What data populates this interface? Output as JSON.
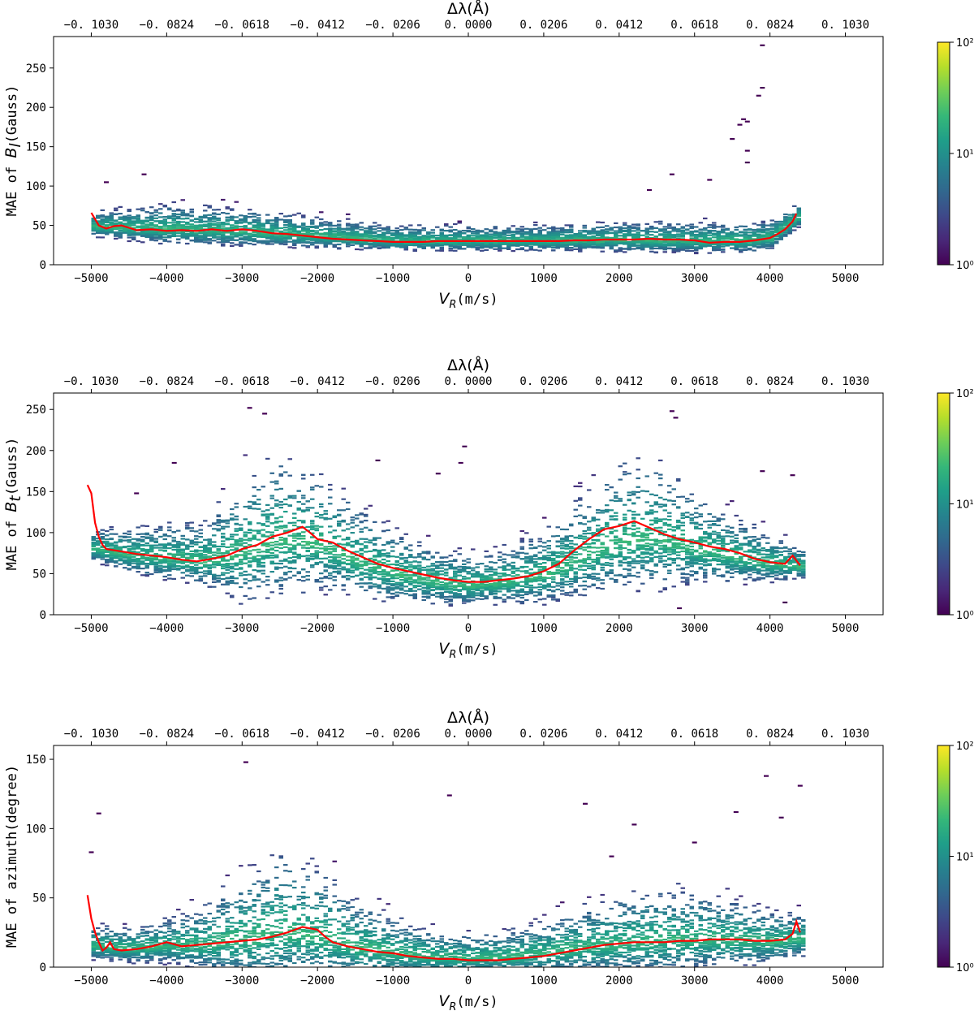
{
  "chart_data": [
    {
      "type": "heatmap",
      "id": "bl",
      "xlabel_italic": "V",
      "xlabel_sub": "R",
      "xlabel_unit": "(m/s)",
      "ylabel_prefix": "MAE  of ",
      "ylabel_italic": "B",
      "ylabel_sub": "l",
      "ylabel_unit": "(Gauss)",
      "top_xlabel": "Δλ(Å)",
      "xlim": [
        -5500,
        5500
      ],
      "ylim": [
        0,
        290
      ],
      "xticks": [
        -5000,
        -4000,
        -3000,
        -2000,
        -1000,
        0,
        1000,
        2000,
        3000,
        4000,
        5000
      ],
      "xtick_labels": [
        "−5000",
        "−4000",
        "−3000",
        "−2000",
        "−1000",
        "0",
        "1000",
        "2000",
        "3000",
        "4000",
        "5000"
      ],
      "yticks": [
        0,
        50,
        100,
        150,
        200,
        250
      ],
      "ytick_labels": [
        "0",
        "50",
        "100",
        "150",
        "200",
        "250"
      ],
      "top_tick_labels": [
        "−0. 1030",
        "−0. 0824",
        "−0. 0618",
        "−0. 0412",
        "−0. 0206",
        "0. 0000",
        "0. 0206",
        "0. 0412",
        "0. 0618",
        "0. 0824",
        "0. 1030"
      ],
      "colorbar": {
        "scale": "log",
        "labels": [
          "10⁰",
          "10¹",
          "10²"
        ],
        "colormap": "viridis"
      },
      "density": {
        "x_range": [
          -5000,
          4350
        ],
        "centre": [
          [
            -5000,
            48
          ],
          [
            -4000,
            45
          ],
          [
            -3000,
            42
          ],
          [
            -2000,
            36
          ],
          [
            -1000,
            30
          ],
          [
            0,
            30
          ],
          [
            1000,
            30
          ],
          [
            2000,
            31
          ],
          [
            3000,
            30
          ],
          [
            3700,
            30
          ],
          [
            4000,
            34
          ],
          [
            4350,
            60
          ]
        ],
        "spread": [
          [
            -5000,
            10
          ],
          [
            -4000,
            16
          ],
          [
            -3000,
            15
          ],
          [
            -2000,
            12
          ],
          [
            -1000,
            10
          ],
          [
            0,
            10
          ],
          [
            1000,
            10
          ],
          [
            2000,
            12
          ],
          [
            3000,
            12
          ],
          [
            4000,
            12
          ],
          [
            4350,
            10
          ]
        ]
      },
      "outliers": [
        [
          3900,
          279
        ],
        [
          3900,
          225
        ],
        [
          3850,
          215
        ],
        [
          3650,
          185
        ],
        [
          3700,
          182
        ],
        [
          3600,
          178
        ],
        [
          3700,
          145
        ],
        [
          3500,
          160
        ],
        [
          3700,
          130
        ],
        [
          3200,
          108
        ],
        [
          2700,
          115
        ],
        [
          2400,
          95
        ],
        [
          -4300,
          115
        ],
        [
          -4800,
          105
        ]
      ],
      "mean_line": {
        "color": "#ff0000",
        "x": [
          -5000,
          -4900,
          -4800,
          -4700,
          -4600,
          -4500,
          -4400,
          -4200,
          -4000,
          -3800,
          -3600,
          -3400,
          -3200,
          -3000,
          -2800,
          -2600,
          -2400,
          -2200,
          -2000,
          -1800,
          -1600,
          -1400,
          -1200,
          -1000,
          -800,
          -600,
          -400,
          -200,
          0,
          200,
          400,
          600,
          800,
          1000,
          1200,
          1400,
          1600,
          1800,
          2000,
          2200,
          2400,
          2600,
          2800,
          3000,
          3200,
          3400,
          3600,
          3800,
          4000,
          4100,
          4200,
          4300,
          4350
        ],
        "y": [
          66,
          50,
          46,
          49,
          50,
          47,
          44,
          45,
          43,
          44,
          43,
          45,
          43,
          45,
          43,
          40,
          39,
          37,
          35,
          33,
          32,
          31,
          30,
          29,
          29,
          29,
          30,
          30,
          30,
          30,
          30,
          30,
          30,
          30,
          30,
          31,
          31,
          32,
          32,
          32,
          33,
          32,
          32,
          31,
          28,
          29,
          29,
          31,
          34,
          39,
          45,
          55,
          65
        ]
      }
    },
    {
      "type": "heatmap",
      "id": "bt",
      "xlabel_italic": "V",
      "xlabel_sub": "R",
      "xlabel_unit": "(m/s)",
      "ylabel_prefix": "MAE  of ",
      "ylabel_italic": "B",
      "ylabel_sub": "t",
      "ylabel_unit": "(Gauss)",
      "top_xlabel": "Δλ(Å)",
      "xlim": [
        -5500,
        5500
      ],
      "ylim": [
        0,
        270
      ],
      "xticks": [
        -5000,
        -4000,
        -3000,
        -2000,
        -1000,
        0,
        1000,
        2000,
        3000,
        4000,
        5000
      ],
      "xtick_labels": [
        "−5000",
        "−4000",
        "−3000",
        "−2000",
        "−1000",
        "0",
        "1000",
        "2000",
        "3000",
        "4000",
        "5000"
      ],
      "yticks": [
        0,
        50,
        100,
        150,
        200,
        250
      ],
      "ytick_labels": [
        "0",
        "50",
        "100",
        "150",
        "200",
        "250"
      ],
      "top_tick_labels": [
        "−0. 1030",
        "−0. 0824",
        "−0. 0618",
        "−0. 0412",
        "−0. 0206",
        "0. 0000",
        "0. 0206",
        "0. 0412",
        "0. 0618",
        "0. 0824",
        "0. 1030"
      ],
      "colorbar": {
        "scale": "log",
        "labels": [
          "10⁰",
          "10¹",
          "10²"
        ],
        "colormap": "viridis"
      },
      "density": {
        "x_range": [
          -5000,
          4400
        ],
        "centre": [
          [
            -5000,
            80
          ],
          [
            -4500,
            72
          ],
          [
            -3500,
            65
          ],
          [
            -3000,
            75
          ],
          [
            -2500,
            90
          ],
          [
            -2000,
            85
          ],
          [
            -1500,
            65
          ],
          [
            -1000,
            50
          ],
          [
            -500,
            40
          ],
          [
            0,
            35
          ],
          [
            500,
            40
          ],
          [
            1000,
            48
          ],
          [
            1500,
            70
          ],
          [
            2000,
            90
          ],
          [
            2500,
            92
          ],
          [
            3000,
            80
          ],
          [
            3500,
            70
          ],
          [
            4000,
            62
          ],
          [
            4400,
            58
          ]
        ],
        "spread": [
          [
            -5000,
            12
          ],
          [
            -4500,
            18
          ],
          [
            -3500,
            25
          ],
          [
            -3000,
            50
          ],
          [
            -2500,
            55
          ],
          [
            -2000,
            45
          ],
          [
            -1500,
            35
          ],
          [
            -1000,
            28
          ],
          [
            -500,
            22
          ],
          [
            0,
            20
          ],
          [
            500,
            22
          ],
          [
            1000,
            28
          ],
          [
            1500,
            40
          ],
          [
            2000,
            50
          ],
          [
            2500,
            50
          ],
          [
            3000,
            35
          ],
          [
            3500,
            25
          ],
          [
            4000,
            18
          ],
          [
            4400,
            12
          ]
        ]
      },
      "outliers": [
        [
          -2900,
          252
        ],
        [
          -2700,
          245
        ],
        [
          2700,
          248
        ],
        [
          2750,
          240
        ],
        [
          -3900,
          185
        ],
        [
          4300,
          170
        ],
        [
          3900,
          175
        ],
        [
          -1200,
          188
        ],
        [
          -100,
          185
        ],
        [
          -50,
          205
        ],
        [
          -400,
          172
        ],
        [
          -4400,
          148
        ],
        [
          4200,
          15
        ],
        [
          2800,
          8
        ]
      ],
      "mean_line": {
        "color": "#ff0000",
        "x": [
          -5050,
          -5000,
          -4950,
          -4900,
          -4850,
          -4800,
          -4600,
          -4400,
          -4200,
          -4000,
          -3800,
          -3600,
          -3400,
          -3200,
          -3000,
          -2800,
          -2600,
          -2400,
          -2200,
          -2100,
          -2000,
          -1800,
          -1600,
          -1400,
          -1200,
          -1000,
          -800,
          -600,
          -400,
          -200,
          0,
          200,
          400,
          600,
          800,
          1000,
          1200,
          1400,
          1600,
          1800,
          2000,
          2200,
          2400,
          2600,
          2800,
          3000,
          3200,
          3400,
          3600,
          3800,
          4000,
          4200,
          4300,
          4400
        ],
        "y": [
          158,
          148,
          112,
          95,
          85,
          80,
          77,
          74,
          72,
          70,
          67,
          65,
          68,
          72,
          80,
          85,
          95,
          100,
          107,
          100,
          92,
          88,
          78,
          70,
          62,
          57,
          53,
          49,
          45,
          42,
          40,
          40,
          42,
          44,
          47,
          53,
          62,
          78,
          92,
          104,
          108,
          114,
          106,
          98,
          92,
          88,
          83,
          80,
          75,
          68,
          64,
          62,
          72,
          60
        ]
      }
    },
    {
      "type": "heatmap",
      "id": "az",
      "xlabel_italic": "V",
      "xlabel_sub": "R",
      "xlabel_unit": "(m/s)",
      "ylabel_prefix": "MAE  of  azimuth",
      "ylabel_italic": "",
      "ylabel_sub": "",
      "ylabel_unit": "(degree)",
      "top_xlabel": "Δλ(Å)",
      "xlim": [
        -5500,
        5500
      ],
      "ylim": [
        0,
        160
      ],
      "xticks": [
        -5000,
        -4000,
        -3000,
        -2000,
        -1000,
        0,
        1000,
        2000,
        3000,
        4000,
        5000
      ],
      "xtick_labels": [
        "−5000",
        "−4000",
        "−3000",
        "−2000",
        "−1000",
        "0",
        "1000",
        "2000",
        "3000",
        "4000",
        "5000"
      ],
      "yticks": [
        0,
        50,
        100,
        150
      ],
      "ytick_labels": [
        "0",
        "50",
        "100",
        "150"
      ],
      "top_tick_labels": [
        "−0. 1030",
        "−0. 0824",
        "−0. 0618",
        "−0. 0412",
        "−0. 0206",
        "0. 0000",
        "0. 0206",
        "0. 0412",
        "0. 0618",
        "0. 0824",
        "0. 1030"
      ],
      "colorbar": {
        "scale": "log",
        "labels": [
          "10⁰",
          "10¹",
          "10²"
        ],
        "colormap": "viridis"
      },
      "density": {
        "x_range": [
          -5000,
          4400
        ],
        "centre": [
          [
            -5000,
            15
          ],
          [
            -4500,
            13
          ],
          [
            -4000,
            15
          ],
          [
            -3500,
            16
          ],
          [
            -3000,
            20
          ],
          [
            -2500,
            25
          ],
          [
            -2000,
            22
          ],
          [
            -1500,
            14
          ],
          [
            -1000,
            10
          ],
          [
            -500,
            7
          ],
          [
            0,
            6
          ],
          [
            500,
            7
          ],
          [
            1000,
            10
          ],
          [
            1500,
            14
          ],
          [
            2000,
            17
          ],
          [
            2500,
            19
          ],
          [
            3000,
            20
          ],
          [
            3500,
            19
          ],
          [
            4000,
            18
          ],
          [
            4400,
            20
          ]
        ],
        "spread": [
          [
            -5000,
            8
          ],
          [
            -4500,
            8
          ],
          [
            -4000,
            10
          ],
          [
            -3500,
            15
          ],
          [
            -3000,
            25
          ],
          [
            -2500,
            30
          ],
          [
            -2000,
            25
          ],
          [
            -1500,
            18
          ],
          [
            -1000,
            13
          ],
          [
            -500,
            10
          ],
          [
            0,
            9
          ],
          [
            500,
            10
          ],
          [
            1000,
            12
          ],
          [
            1500,
            15
          ],
          [
            2000,
            18
          ],
          [
            2500,
            20
          ],
          [
            3000,
            18
          ],
          [
            3500,
            15
          ],
          [
            4000,
            12
          ],
          [
            4400,
            10
          ]
        ]
      },
      "outliers": [
        [
          -2950,
          148
        ],
        [
          -250,
          124
        ],
        [
          3950,
          138
        ],
        [
          4400,
          131
        ],
        [
          3550,
          112
        ],
        [
          1550,
          118
        ],
        [
          2200,
          103
        ],
        [
          4150,
          108
        ],
        [
          -4900,
          111
        ],
        [
          -5000,
          83
        ],
        [
          1900,
          80
        ],
        [
          3000,
          90
        ]
      ],
      "mean_line": {
        "color": "#ff0000",
        "x": [
          -5050,
          -5000,
          -4950,
          -4900,
          -4850,
          -4800,
          -4750,
          -4700,
          -4600,
          -4400,
          -4200,
          -4000,
          -3800,
          -3600,
          -3400,
          -3200,
          -3000,
          -2800,
          -2600,
          -2400,
          -2300,
          -2200,
          -2100,
          -2000,
          -1900,
          -1800,
          -1600,
          -1400,
          -1200,
          -1000,
          -800,
          -600,
          -400,
          -200,
          0,
          200,
          400,
          600,
          800,
          1000,
          1200,
          1400,
          1600,
          1800,
          2000,
          2200,
          2400,
          2600,
          2800,
          3000,
          3200,
          3400,
          3600,
          3800,
          4000,
          4200,
          4300,
          4350,
          4400
        ],
        "y": [
          52,
          35,
          25,
          18,
          12,
          14,
          18,
          13,
          12,
          13,
          15,
          18,
          15,
          16,
          17,
          18,
          19,
          20,
          22,
          25,
          27,
          29,
          28,
          27,
          22,
          18,
          15,
          13,
          11,
          10,
          8,
          7,
          6,
          6,
          5,
          5,
          5,
          6,
          7,
          8,
          10,
          12,
          14,
          16,
          17,
          18,
          18,
          18,
          19,
          19,
          20,
          20,
          20,
          19,
          19,
          20,
          24,
          33,
          25
        ]
      }
    }
  ]
}
